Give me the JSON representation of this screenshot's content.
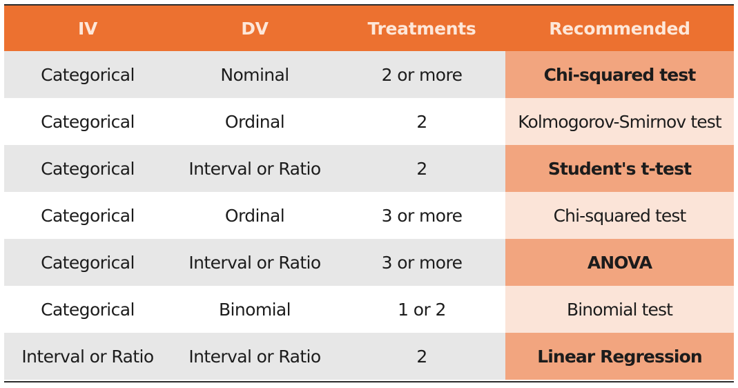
{
  "table": {
    "headers": [
      "IV",
      "DV",
      "Treatments",
      "Recommended"
    ],
    "rows": [
      {
        "iv": "Categorical",
        "dv": "Nominal",
        "treatments": "2 or more",
        "recommended": "Chi-squared test"
      },
      {
        "iv": "Categorical",
        "dv": "Ordinal",
        "treatments": "2",
        "recommended": "Kolmogorov-Smirnov test"
      },
      {
        "iv": "Categorical",
        "dv": "Interval or Ratio",
        "treatments": "2",
        "recommended": "Student's t-test"
      },
      {
        "iv": "Categorical",
        "dv": "Ordinal",
        "treatments": "3 or more",
        "recommended": "Chi-squared test"
      },
      {
        "iv": "Categorical",
        "dv": "Interval or Ratio",
        "treatments": "3 or more",
        "recommended": "ANOVA"
      },
      {
        "iv": "Categorical",
        "dv": "Binomial",
        "treatments": "1 or 2",
        "recommended": "Binomial test"
      },
      {
        "iv": "Interval or Ratio",
        "dv": "Interval or Ratio",
        "treatments": "2",
        "recommended": "Linear Regression"
      }
    ]
  },
  "colors": {
    "header_bg": "#ec7130",
    "header_text": "#fde7d9",
    "row_odd_bg": "#e7e7e7",
    "row_even_bg": "#ffffff",
    "recommended_odd_bg": "#f2a57f",
    "recommended_even_bg": "#fbe4d8"
  }
}
